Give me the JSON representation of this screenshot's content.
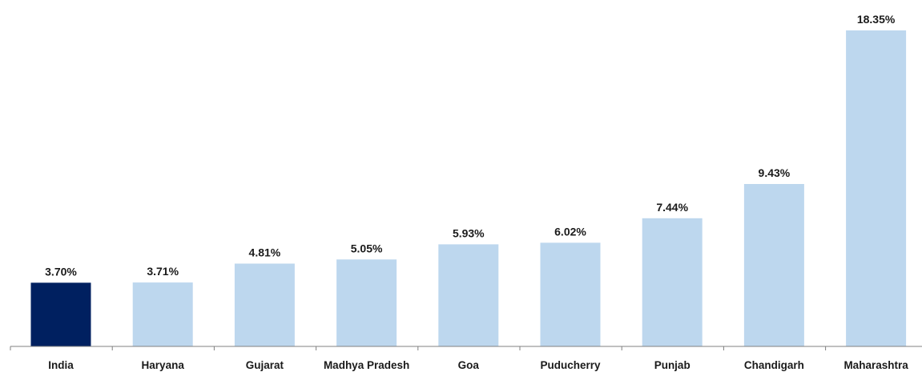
{
  "chart_data": {
    "type": "bar",
    "title": "",
    "xlabel": "",
    "ylabel": "",
    "categories": [
      "India",
      "Haryana",
      "Gujarat",
      "Madhya Pradesh",
      "Goa",
      "Puducherry",
      "Punjab",
      "Chandigarh",
      "Maharashtra"
    ],
    "values": [
      3.7,
      3.71,
      4.81,
      5.05,
      5.93,
      6.02,
      7.44,
      9.43,
      18.35
    ],
    "value_labels": [
      "3.70%",
      "3.71%",
      "4.81%",
      "5.05%",
      "5.93%",
      "6.02%",
      "7.44%",
      "9.43%",
      "18.35%"
    ],
    "ylim": [
      0,
      18.35
    ],
    "grid": false,
    "legend": "none",
    "highlight_category": "India",
    "colors": {
      "bar": "#bdd7ee",
      "highlight": "#002060",
      "axis": "#808080"
    }
  }
}
